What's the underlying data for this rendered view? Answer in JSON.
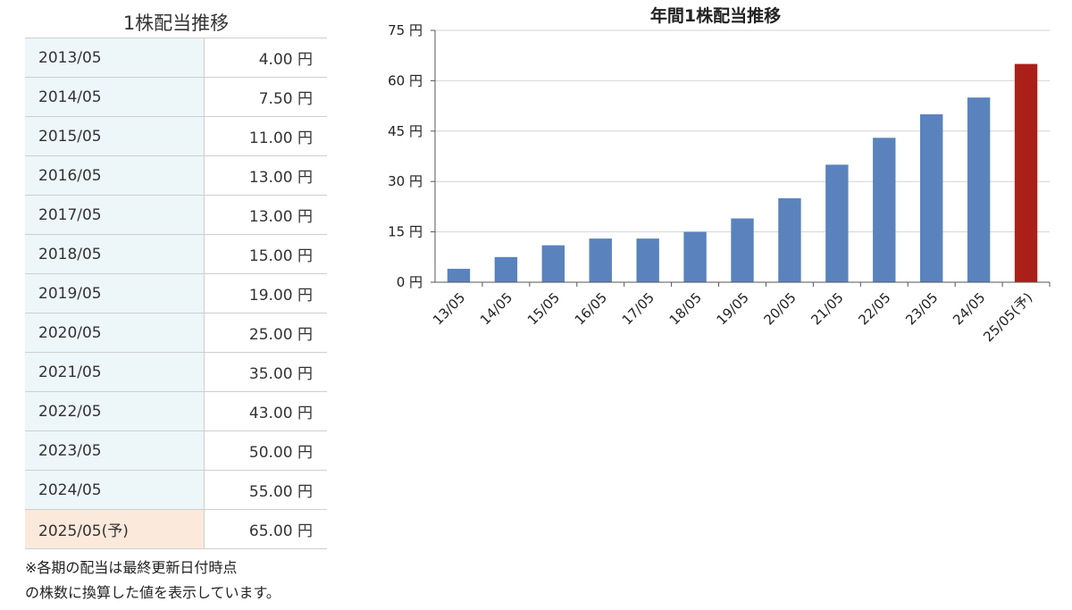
{
  "table": {
    "title": "1株配当推移",
    "rows": [
      {
        "period": "2013/05",
        "value": "4.00 円"
      },
      {
        "period": "2014/05",
        "value": "7.50 円"
      },
      {
        "period": "2015/05",
        "value": "11.00 円"
      },
      {
        "period": "2016/05",
        "value": "13.00 円"
      },
      {
        "period": "2017/05",
        "value": "13.00 円"
      },
      {
        "period": "2018/05",
        "value": "15.00 円"
      },
      {
        "period": "2019/05",
        "value": "19.00 円"
      },
      {
        "period": "2020/05",
        "value": "25.00 円"
      },
      {
        "period": "2021/05",
        "value": "35.00 円"
      },
      {
        "period": "2022/05",
        "value": "43.00 円"
      },
      {
        "period": "2023/05",
        "value": "50.00 円"
      },
      {
        "period": "2024/05",
        "value": "55.00 円"
      },
      {
        "period": "2025/05(予)",
        "value": "65.00 円"
      }
    ],
    "note_line1": "※各期の配当は最終更新日付時点",
    "note_line2": "の株数に換算した値を表示しています。"
  },
  "chart_data": {
    "type": "bar",
    "title": "年間1株配当推移",
    "categories": [
      "13/05",
      "14/05",
      "15/05",
      "16/05",
      "17/05",
      "18/05",
      "19/05",
      "20/05",
      "21/05",
      "22/05",
      "23/05",
      "24/05",
      "25/05(予)"
    ],
    "values": [
      4,
      7.5,
      11,
      13,
      13,
      15,
      19,
      25,
      35,
      43,
      50,
      55,
      65
    ],
    "ylim": [
      0,
      75
    ],
    "yticks": [
      0,
      15,
      30,
      45,
      60,
      75
    ],
    "ytick_labels": [
      "0 円",
      "15 円",
      "30 円",
      "45 円",
      "60 円",
      "75 円"
    ],
    "grid": "horizontal",
    "legend": "none",
    "colors": {
      "actual": "#5a83bd",
      "forecast": "#ab1f19"
    }
  }
}
